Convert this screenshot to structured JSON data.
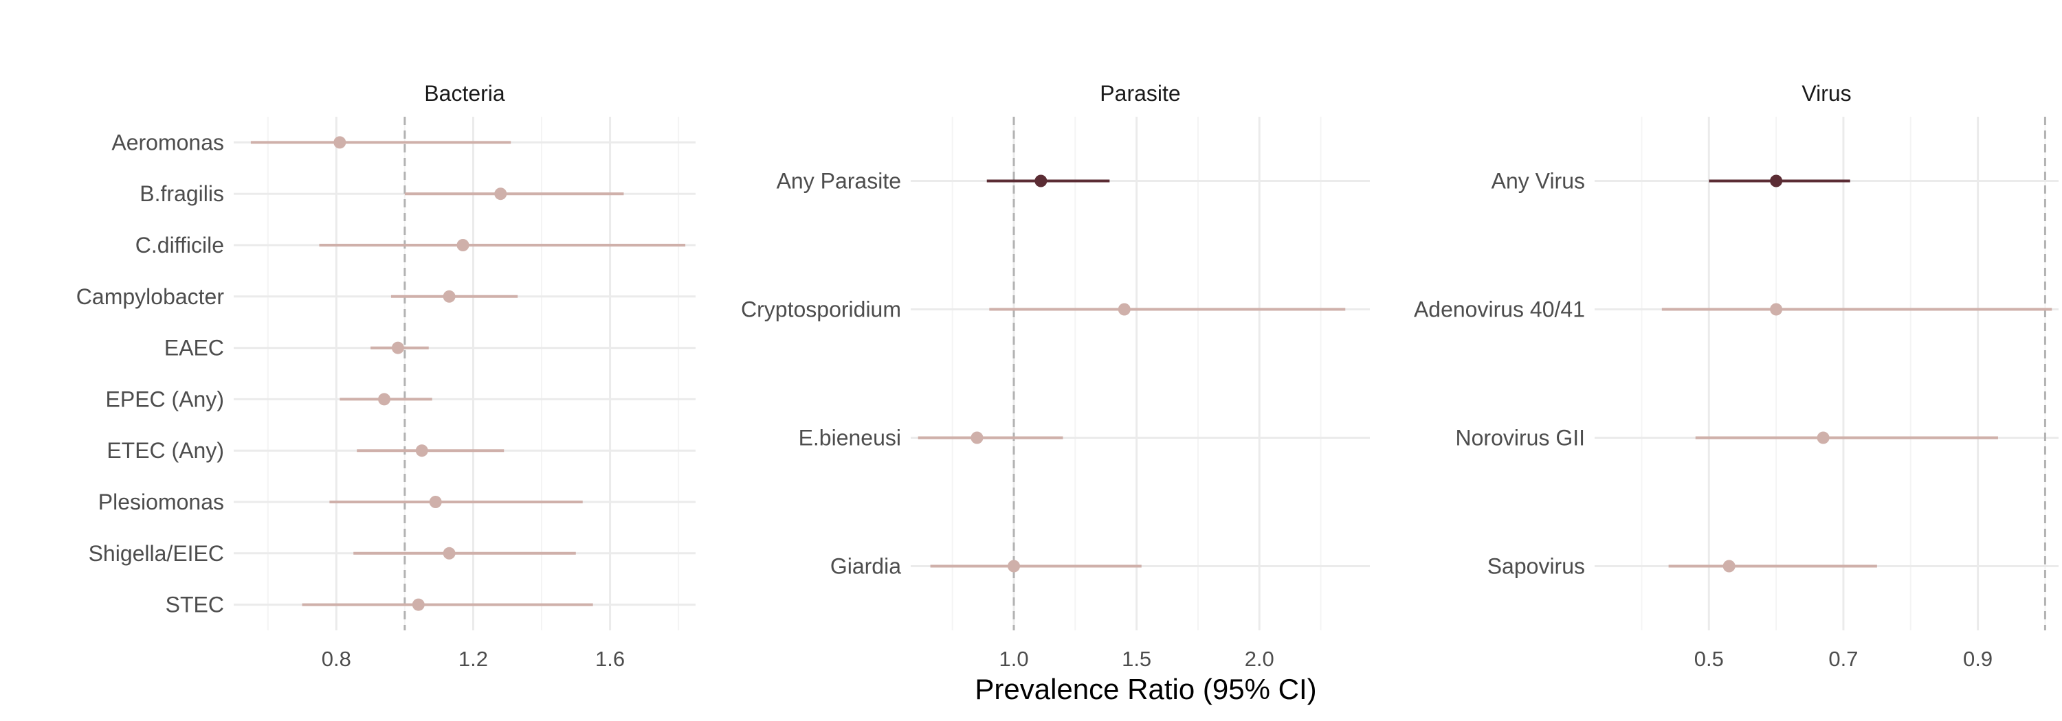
{
  "chart_data": {
    "type": "forest",
    "xlabel": "Prevalence Ratio (95% CI)",
    "reference_line": 1.0,
    "colors": {
      "summary": "#5b2c34",
      "individual": "#cfb0aa",
      "reference": "#b3b3b3",
      "grid_major": "#ebebeb",
      "grid_minor": "#f4f4f4"
    },
    "panels": [
      {
        "title": "Bacteria",
        "xlim": [
          0.5,
          1.85
        ],
        "xticks": [
          0.8,
          1.2,
          1.6
        ],
        "xtick_labels": [
          "0.8",
          "1.2",
          "1.6"
        ],
        "rows": [
          {
            "label": "Aeromonas",
            "estimate": 0.81,
            "lower": 0.55,
            "upper": 1.31,
            "summary": false
          },
          {
            "label": "B.fragilis",
            "estimate": 1.28,
            "lower": 1.0,
            "upper": 1.64,
            "summary": false
          },
          {
            "label": "C.difficile",
            "estimate": 1.17,
            "lower": 0.75,
            "upper": 1.82,
            "summary": false
          },
          {
            "label": "Campylobacter",
            "estimate": 1.13,
            "lower": 0.96,
            "upper": 1.33,
            "summary": false
          },
          {
            "label": "EAEC",
            "estimate": 0.98,
            "lower": 0.9,
            "upper": 1.07,
            "summary": false
          },
          {
            "label": "EPEC (Any)",
            "estimate": 0.94,
            "lower": 0.81,
            "upper": 1.08,
            "summary": false
          },
          {
            "label": "ETEC (Any)",
            "estimate": 1.05,
            "lower": 0.86,
            "upper": 1.29,
            "summary": false
          },
          {
            "label": "Plesiomonas",
            "estimate": 1.09,
            "lower": 0.78,
            "upper": 1.52,
            "summary": false
          },
          {
            "label": "Shigella/EIEC",
            "estimate": 1.13,
            "lower": 0.85,
            "upper": 1.5,
            "summary": false
          },
          {
            "label": "STEC",
            "estimate": 1.04,
            "lower": 0.7,
            "upper": 1.55,
            "summary": false
          }
        ]
      },
      {
        "title": "Parasite",
        "xlim": [
          0.58,
          2.45
        ],
        "xticks": [
          1.0,
          1.5,
          2.0
        ],
        "xtick_labels": [
          "1.0",
          "1.5",
          "2.0"
        ],
        "rows": [
          {
            "label": "Any Parasite",
            "estimate": 1.11,
            "lower": 0.89,
            "upper": 1.39,
            "summary": true
          },
          {
            "label": "Cryptosporidium",
            "estimate": 1.45,
            "lower": 0.9,
            "upper": 2.35,
            "summary": false
          },
          {
            "label": "E.bieneusi",
            "estimate": 0.85,
            "lower": 0.61,
            "upper": 1.2,
            "summary": false
          },
          {
            "label": "Giardia",
            "estimate": 1.0,
            "lower": 0.66,
            "upper": 1.52,
            "summary": false
          }
        ]
      },
      {
        "title": "Virus",
        "xlim": [
          0.33,
          1.02
        ],
        "xticks": [
          0.5,
          0.7,
          0.9
        ],
        "xtick_labels": [
          "0.5",
          "0.7",
          "0.9"
        ],
        "rows": [
          {
            "label": "Any Virus",
            "estimate": 0.6,
            "lower": 0.5,
            "upper": 0.71,
            "summary": true
          },
          {
            "label": "Adenovirus 40/41",
            "estimate": 0.6,
            "lower": 0.43,
            "upper": 1.01,
            "summary": false
          },
          {
            "label": "Norovirus GII",
            "estimate": 0.67,
            "lower": 0.48,
            "upper": 0.93,
            "summary": false
          },
          {
            "label": "Sapovirus",
            "estimate": 0.53,
            "lower": 0.44,
            "upper": 0.75,
            "summary": false
          }
        ]
      }
    ]
  }
}
